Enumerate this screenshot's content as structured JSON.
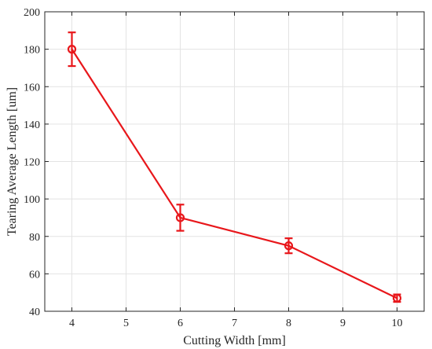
{
  "chart_data": {
    "type": "line",
    "title": "",
    "xlabel": "Cutting Width [mm]",
    "ylabel": "Tearing Average Length [um]",
    "xlim": [
      3.5,
      10.5
    ],
    "ylim": [
      40,
      200
    ],
    "x_ticks": [
      4,
      5,
      6,
      7,
      8,
      9,
      10
    ],
    "y_ticks": [
      40,
      60,
      80,
      100,
      120,
      140,
      160,
      180,
      200
    ],
    "grid": true,
    "legend": "none",
    "series": [
      {
        "color": "#e8171b",
        "marker": "circle",
        "x": [
          4,
          6,
          8,
          10
        ],
        "y": [
          180,
          90,
          75,
          47
        ],
        "error": [
          9,
          7,
          4,
          2
        ]
      }
    ]
  }
}
